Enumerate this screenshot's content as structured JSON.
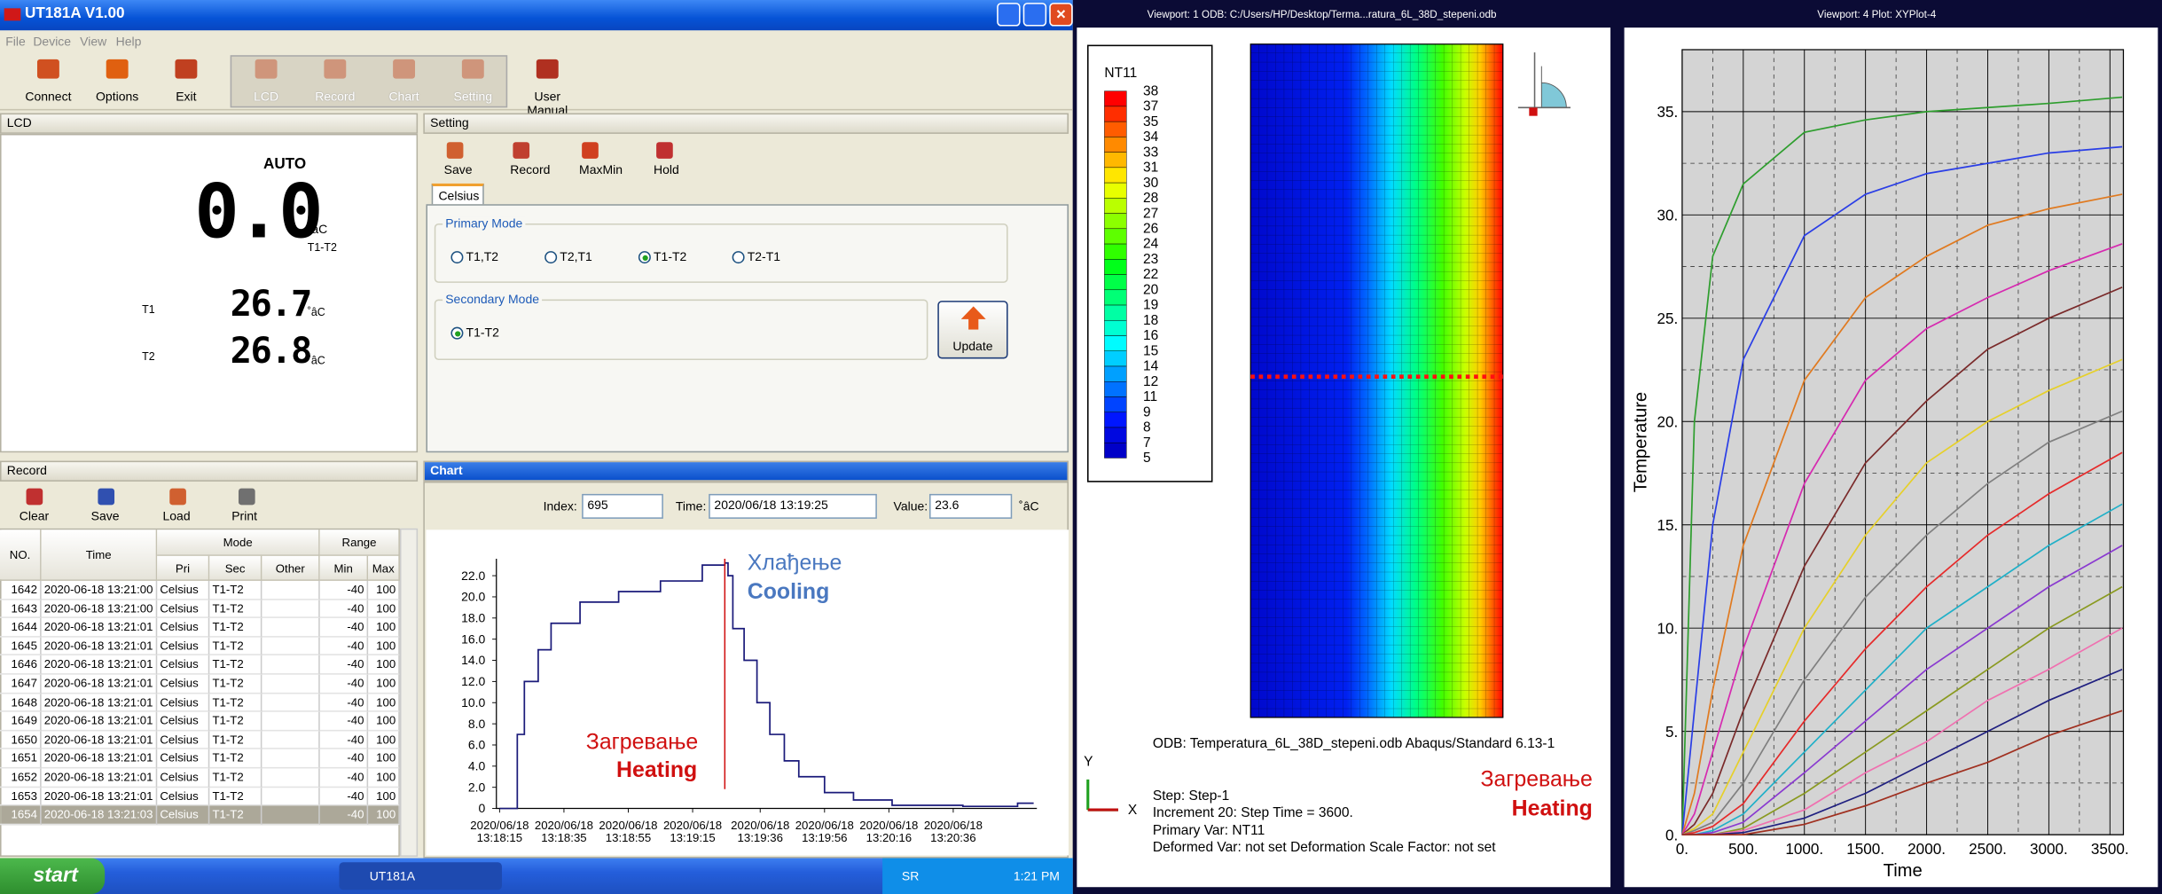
{
  "window": {
    "title": "UT181A V1.00",
    "menu": [
      "File",
      "Device",
      "View",
      "Help"
    ],
    "toolbar": [
      "Connect",
      "Options",
      "Exit",
      "LCD",
      "Record",
      "Chart",
      "Setting",
      "User Manual"
    ]
  },
  "lcd": {
    "panel": "LCD",
    "mode": "AUTO",
    "main": "0.0",
    "unit": "˚âC",
    "sub": "T1-T2",
    "t1_label": "T1",
    "t1": "26.7",
    "t2_label": "T2",
    "t2": "26.8"
  },
  "setting": {
    "panel": "Setting",
    "toolbar": [
      "Save",
      "Record",
      "MaxMin",
      "Hold"
    ],
    "tab": "Celsius",
    "primary_label": "Primary Mode",
    "primary_options": [
      "T1,T2",
      "T2,T1",
      "T1-T2",
      "T2-T1"
    ],
    "primary_selected": 2,
    "secondary_label": "Secondary Mode",
    "secondary_options": [
      "T1-T2"
    ],
    "update": "Update"
  },
  "record": {
    "panel": "Record",
    "toolbar": [
      "Clear",
      "Save",
      "Load",
      "Print"
    ],
    "columns": {
      "no": "NO.",
      "time": "Time",
      "mode": "Mode",
      "pri": "Pri",
      "sec": "Sec",
      "other": "Other",
      "range": "Range",
      "min": "Min",
      "max": "Max"
    },
    "rows": [
      [
        "1642",
        "2020-06-18 13:21:00",
        "Celsius",
        "T1-T2",
        "",
        "-40",
        "100"
      ],
      [
        "1643",
        "2020-06-18 13:21:00",
        "Celsius",
        "T1-T2",
        "",
        "-40",
        "100"
      ],
      [
        "1644",
        "2020-06-18 13:21:01",
        "Celsius",
        "T1-T2",
        "",
        "-40",
        "100"
      ],
      [
        "1645",
        "2020-06-18 13:21:01",
        "Celsius",
        "T1-T2",
        "",
        "-40",
        "100"
      ],
      [
        "1646",
        "2020-06-18 13:21:01",
        "Celsius",
        "T1-T2",
        "",
        "-40",
        "100"
      ],
      [
        "1647",
        "2020-06-18 13:21:01",
        "Celsius",
        "T1-T2",
        "",
        "-40",
        "100"
      ],
      [
        "1648",
        "2020-06-18 13:21:01",
        "Celsius",
        "T1-T2",
        "",
        "-40",
        "100"
      ],
      [
        "1649",
        "2020-06-18 13:21:01",
        "Celsius",
        "T1-T2",
        "",
        "-40",
        "100"
      ],
      [
        "1650",
        "2020-06-18 13:21:01",
        "Celsius",
        "T1-T2",
        "",
        "-40",
        "100"
      ],
      [
        "1651",
        "2020-06-18 13:21:01",
        "Celsius",
        "T1-T2",
        "",
        "-40",
        "100"
      ],
      [
        "1652",
        "2020-06-18 13:21:01",
        "Celsius",
        "T1-T2",
        "",
        "-40",
        "100"
      ],
      [
        "1653",
        "2020-06-18 13:21:01",
        "Celsius",
        "T1-T2",
        "",
        "-40",
        "100"
      ],
      [
        "1654",
        "2020-06-18 13:21:03",
        "Celsius",
        "T1-T2",
        "",
        "-40",
        "100"
      ]
    ],
    "selected_row": 12
  },
  "chart_panel": {
    "panel": "Chart",
    "index_label": "Index:",
    "index": "695",
    "time_label": "Time:",
    "time": "2020/06/18 13:19:25",
    "value_label": "Value:",
    "value": "23.6",
    "unit": "˚âC"
  },
  "chart_data": [
    {
      "type": "line",
      "step": true,
      "color": "#1a1a7a",
      "x": [
        0,
        4,
        5.5,
        7.7,
        12,
        16,
        25,
        37,
        50,
        63,
        70,
        71,
        72.5,
        76,
        80,
        84,
        88.5,
        93,
        101,
        110,
        122,
        144,
        161,
        166
      ],
      "values": [
        0,
        0,
        7,
        12,
        15,
        17.5,
        19.5,
        20.5,
        21.5,
        23,
        23.2,
        22,
        17,
        14,
        10,
        7,
        4.5,
        3,
        1.5,
        0.8,
        0.3,
        0.2,
        0.5,
        0.5
      ],
      "xlim": [
        -1,
        167
      ],
      "ylim": [
        0,
        23.6
      ],
      "xticks": [
        {
          "value": 0,
          "label": "2020/06/18\n13:18:15"
        },
        {
          "value": 20,
          "label": "2020/06/18\n13:18:35"
        },
        {
          "value": 40,
          "label": "2020/06/18\n13:18:55"
        },
        {
          "value": 60,
          "label": "2020/06/18\n13:19:15"
        },
        {
          "value": 81,
          "label": "2020/06/18\n13:19:36"
        },
        {
          "value": 101,
          "label": "2020/06/18\n13:19:56"
        },
        {
          "value": 121,
          "label": "2020/06/18\n13:20:16"
        },
        {
          "value": 141,
          "label": "2020/06/18\n13:20:36"
        }
      ],
      "yticks": [
        0,
        {
          "value": 2,
          "label": "2.0"
        },
        {
          "value": 4,
          "label": "4.0"
        },
        {
          "value": 6,
          "label": "6.0"
        },
        {
          "value": 8,
          "label": "8.0"
        },
        {
          "value": 10,
          "label": "10.0"
        },
        {
          "value": 12,
          "label": "12.0"
        },
        {
          "value": 14,
          "label": "14.0"
        },
        {
          "value": 16,
          "label": "16.0"
        },
        {
          "value": 18,
          "label": "18.0"
        },
        {
          "value": 20,
          "label": "20.0"
        },
        {
          "value": 22,
          "label": "22.0"
        }
      ],
      "cursor_x": 70,
      "cursor_color": "#d01010",
      "annotations": {
        "cooling_sr": "Хлађење",
        "cooling": "Cooling",
        "heating_sr": "Загревање",
        "heating": "Heating"
      }
    },
    {
      "type": "line",
      "x_label": "Time",
      "y_label": "Temperature",
      "grid": true,
      "x": [
        0,
        100,
        250,
        500,
        1000,
        1500,
        2000,
        2500,
        3000,
        3600
      ],
      "series": [
        {
          "color": "#2e9e2e",
          "values": [
            0,
            20,
            28,
            31.5,
            34,
            34.6,
            35,
            35.2,
            35.4,
            35.7
          ]
        },
        {
          "color": "#2a3ee6",
          "values": [
            0,
            6,
            15,
            23,
            29,
            31,
            32,
            32.5,
            33,
            33.3
          ]
        },
        {
          "color": "#e07a20",
          "values": [
            0,
            2,
            7,
            14,
            22,
            26,
            28,
            29.5,
            30.3,
            31
          ]
        },
        {
          "color": "#d62ab0",
          "values": [
            0,
            1,
            4,
            9,
            17,
            22,
            24.5,
            26,
            27.3,
            28.6
          ]
        },
        {
          "color": "#7a2a2a",
          "values": [
            0,
            0.5,
            2,
            6,
            13,
            18,
            21,
            23.5,
            25,
            26.5
          ]
        },
        {
          "color": "#e6d02a",
          "values": [
            0,
            0.3,
            1,
            4,
            10,
            14.5,
            18,
            20,
            21.5,
            23
          ]
        },
        {
          "color": "#808080",
          "values": [
            0,
            0.2,
            0.6,
            2.5,
            7.5,
            11.5,
            14.5,
            17,
            19,
            20.5
          ]
        },
        {
          "color": "#e62a2a",
          "values": [
            0,
            0.1,
            0.4,
            1.5,
            5.5,
            9,
            12,
            14.5,
            16.5,
            18.5
          ]
        },
        {
          "color": "#20b0c8",
          "values": [
            0,
            0,
            0.2,
            1,
            4,
            7,
            10,
            12,
            14,
            16
          ]
        },
        {
          "color": "#8a3ad0",
          "values": [
            0,
            0,
            0.1,
            0.6,
            3,
            5.5,
            8,
            10,
            12,
            14
          ]
        },
        {
          "color": "#8a9a20",
          "values": [
            0,
            0,
            0,
            0.3,
            2,
            4,
            6,
            8,
            10,
            12
          ]
        },
        {
          "color": "#f070b0",
          "values": [
            0,
            0,
            0,
            0.2,
            1.2,
            3,
            4.5,
            6.5,
            8,
            10
          ]
        },
        {
          "color": "#202080",
          "values": [
            0,
            0,
            0,
            0.1,
            0.8,
            2,
            3.5,
            5,
            6.5,
            8
          ]
        },
        {
          "color": "#a03020",
          "values": [
            0,
            0,
            0,
            0,
            0.5,
            1.4,
            2.5,
            3.5,
            4.8,
            6
          ]
        }
      ],
      "xlim": [
        0,
        3610
      ],
      "ylim": [
        0,
        38
      ],
      "xticks": [
        {
          "value": 0,
          "label": "0."
        },
        {
          "value": 500,
          "label": "500."
        },
        {
          "value": 1000,
          "label": "1000."
        },
        {
          "value": 1500,
          "label": "1500."
        },
        {
          "value": 2000,
          "label": "2000."
        },
        {
          "value": 2500,
          "label": "2500."
        },
        {
          "value": 3000,
          "label": "3000."
        },
        {
          "value": 3500,
          "label": "3500."
        }
      ],
      "yticks": [
        {
          "value": 0,
          "label": "0."
        },
        {
          "value": 5,
          "label": "5."
        },
        {
          "value": 10,
          "label": "10."
        },
        {
          "value": 15,
          "label": "15."
        },
        {
          "value": 20,
          "label": "20."
        },
        {
          "value": 25,
          "label": "25."
        },
        {
          "value": 30,
          "label": "30."
        },
        {
          "value": 35,
          "label": "35."
        }
      ]
    }
  ],
  "abaqus": {
    "viewport1_header": "Viewport: 1     ODB: C:/Users/HP/Desktop/Terma...ratura_6L_38D_stepeni.odb",
    "viewport4_header": "Viewport: 4     Plot: XYPlot-4",
    "legend_title": "NT11",
    "legend_labels": [
      "38",
      "37",
      "35",
      "34",
      "33",
      "31",
      "30",
      "28",
      "27",
      "26",
      "24",
      "23",
      "22",
      "20",
      "19",
      "18",
      "16",
      "15",
      "14",
      "12",
      "11",
      "9",
      "8",
      "7",
      "5"
    ],
    "legend_colors": [
      "#ff0000",
      "#ff2e00",
      "#ff5c00",
      "#ff8a00",
      "#ffb800",
      "#ffe600",
      "#e8ff00",
      "#baff00",
      "#8cff00",
      "#5eff00",
      "#30ff00",
      "#00ff1a",
      "#00ff48",
      "#00ff76",
      "#00ffa4",
      "#00ffd2",
      "#00fcff",
      "#00ceff",
      "#00a0ff",
      "#0072ff",
      "#0044ff",
      "#0016ff",
      "#0008e0",
      "#0000c8"
    ],
    "odb_line": "ODB: Temperatura_6L_38D_stepeni.odb     Abaqus/Standard 6.13-1",
    "step": "Step: Step-1",
    "increment": "Increment     20: Step Time =     3600.",
    "primary_var": "Primary Var: NT11",
    "deformed_var": "Deformed Var: not set   Deformation Scale Factor: not set",
    "axis_y": "Y",
    "axis_x": "X",
    "heating_sr": "Загревање",
    "heating": "Heating"
  },
  "taskbar": {
    "start": "start",
    "task": "UT181A",
    "lang": "SR",
    "clock": "1:21 PM"
  }
}
